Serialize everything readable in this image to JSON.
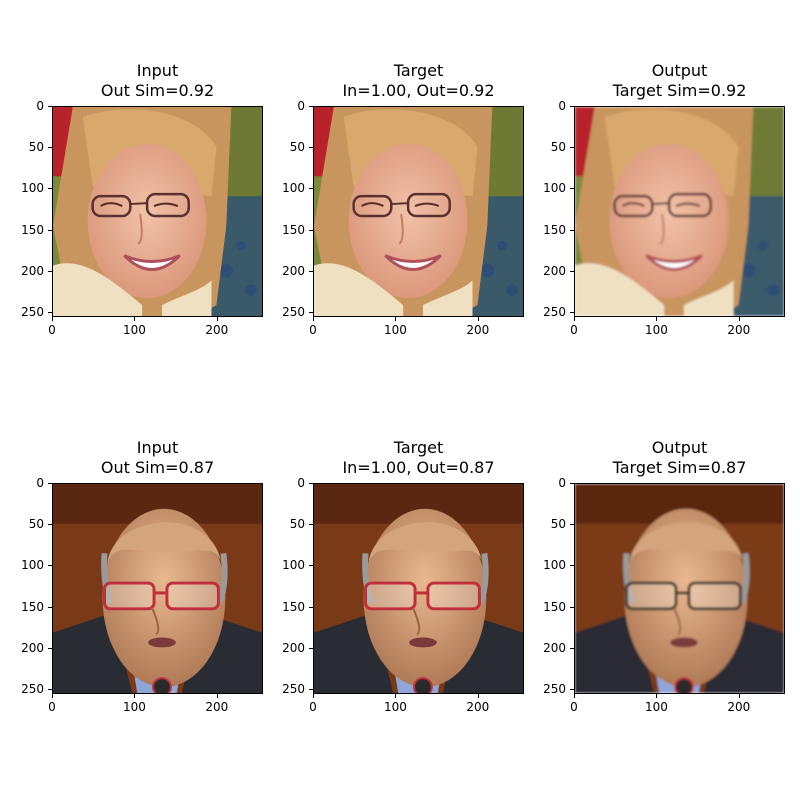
{
  "figure": {
    "rows": [
      {
        "panels": [
          {
            "line1": "Input",
            "line2": "Out Sim=0.92",
            "scene": "woman"
          },
          {
            "line1": "Target",
            "line2": "In=1.00, Out=0.92",
            "scene": "woman"
          },
          {
            "line1": "Output",
            "line2": "Target Sim=0.92",
            "scene": "woman-soft"
          }
        ]
      },
      {
        "panels": [
          {
            "line1": "Input",
            "line2": "Out Sim=0.87",
            "scene": "man"
          },
          {
            "line1": "Target",
            "line2": "In=1.00, Out=0.87",
            "scene": "man"
          },
          {
            "line1": "Output",
            "line2": "Target Sim=0.87",
            "scene": "man-soft"
          }
        ]
      }
    ],
    "axis": {
      "y_ticks": [
        "0",
        "50",
        "100",
        "150",
        "200",
        "250"
      ],
      "x_ticks": [
        "0",
        "100",
        "200"
      ],
      "range": [
        0,
        256
      ]
    }
  }
}
